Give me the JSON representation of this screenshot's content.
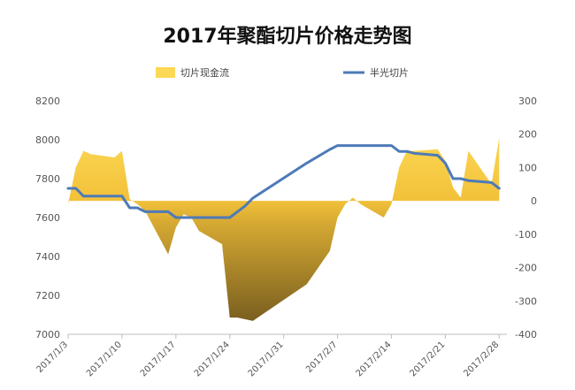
{
  "chart_data": {
    "type": "line",
    "title": "2017年聚酯切片价格走势图",
    "legend_position": "top",
    "grid": false,
    "xlabel": "",
    "ylabel": "",
    "y2label": "",
    "x_tick_labels": [
      "2017/1/3",
      "2017/1/10",
      "2017/1/17",
      "2017/1/24",
      "2017/1/31",
      "2017/2/7",
      "2017/2/14",
      "2017/2/21",
      "2017/2/28"
    ],
    "y_ticks": [
      7000,
      7200,
      7400,
      7600,
      7800,
      8000,
      8200
    ],
    "y2_ticks": [
      -400,
      -300,
      -200,
      -100,
      0,
      100,
      200,
      300
    ],
    "ylim": [
      7000,
      8200
    ],
    "y2lim": [
      -400,
      300
    ],
    "x": [
      "2017/1/3",
      "2017/1/4",
      "2017/1/5",
      "2017/1/6",
      "2017/1/9",
      "2017/1/10",
      "2017/1/11",
      "2017/1/12",
      "2017/1/13",
      "2017/1/16",
      "2017/1/17",
      "2017/1/18",
      "2017/1/19",
      "2017/1/20",
      "2017/1/23",
      "2017/1/24",
      "2017/1/25",
      "2017/1/26",
      "2017/1/27",
      "2017/2/3",
      "2017/2/6",
      "2017/2/7",
      "2017/2/8",
      "2017/2/9",
      "2017/2/10",
      "2017/2/13",
      "2017/2/14",
      "2017/2/15",
      "2017/2/16",
      "2017/2/17",
      "2017/2/20",
      "2017/2/21",
      "2017/2/22",
      "2017/2/23",
      "2017/2/24",
      "2017/2/27",
      "2017/2/28"
    ],
    "series": [
      {
        "name": "切片现金流",
        "axis": "right",
        "kind": "area",
        "color": "#f5c53a",
        "negative_color": "#6e5620",
        "values": [
          -10,
          100,
          150,
          140,
          130,
          150,
          5,
          -10,
          -30,
          -160,
          -80,
          -40,
          -50,
          -90,
          -130,
          -350,
          -350,
          -355,
          -360,
          -250,
          -150,
          -50,
          -10,
          10,
          -10,
          -50,
          -10,
          100,
          150,
          150,
          155,
          120,
          40,
          10,
          150,
          50,
          190
        ]
      },
      {
        "name": "半光切片",
        "axis": "left",
        "kind": "line",
        "color": "#4d7ab8",
        "values": [
          7750,
          7750,
          7710,
          7710,
          7710,
          7710,
          7650,
          7650,
          7630,
          7630,
          7600,
          7600,
          7600,
          7600,
          7600,
          7600,
          7630,
          7660,
          7700,
          7880,
          7950,
          7970,
          7970,
          7970,
          7970,
          7970,
          7970,
          7940,
          7940,
          7930,
          7920,
          7880,
          7800,
          7800,
          7790,
          7780,
          7750
        ]
      }
    ]
  }
}
